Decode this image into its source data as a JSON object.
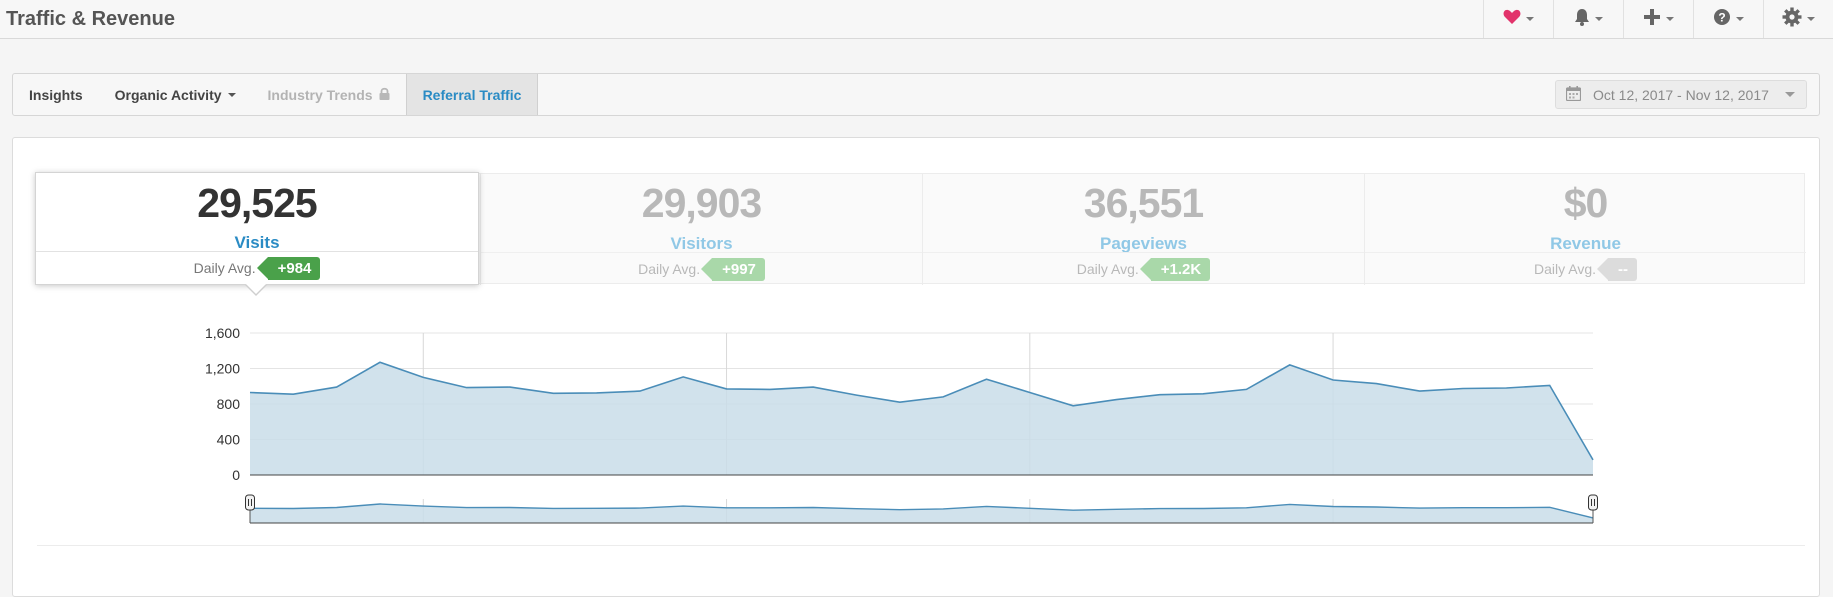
{
  "header": {
    "title": "Traffic & Revenue",
    "icons": [
      "heart-icon",
      "bell-icon",
      "plus-icon",
      "help-icon",
      "gear-icon"
    ]
  },
  "tabs": [
    {
      "label": "Insights",
      "state": "normal"
    },
    {
      "label": "Organic Activity",
      "state": "dropdown"
    },
    {
      "label": "Industry Trends",
      "state": "locked"
    },
    {
      "label": "Referral Traffic",
      "state": "active"
    }
  ],
  "date_range": {
    "label": "Oct 12, 2017 - Nov 12, 2017"
  },
  "metrics": [
    {
      "value": "29,525",
      "label": "Visits",
      "avg_label": "Daily Avg.",
      "avg_badge": "+984",
      "active": true
    },
    {
      "value": "29,903",
      "label": "Visitors",
      "avg_label": "Daily Avg.",
      "avg_badge": "+997",
      "active": false
    },
    {
      "value": "36,551",
      "label": "Pageviews",
      "avg_label": "Daily Avg.",
      "avg_badge": "+1.2K",
      "active": false
    },
    {
      "value": "$0",
      "label": "Revenue",
      "avg_label": "Daily Avg.",
      "avg_badge": "--",
      "active": false
    }
  ],
  "colors": {
    "accent": "#2a8bc4",
    "series_line": "#4a8db8",
    "series_fill": "#c9dde9",
    "badge_positive": "#4aa14a",
    "heart": "#e2336b"
  },
  "chart_data": {
    "type": "area",
    "title": "",
    "xlabel": "",
    "ylabel": "",
    "ylim": [
      0,
      1600
    ],
    "yticks": [
      "1,600",
      "1,200",
      "800",
      "400",
      "0"
    ],
    "ytick_values": [
      1600,
      1200,
      800,
      400,
      0
    ],
    "grid": true,
    "series": [
      {
        "name": "",
        "values": [
          930,
          910,
          990,
          1270,
          1100,
          985,
          990,
          920,
          925,
          945,
          1105,
          970,
          965,
          990,
          900,
          820,
          880,
          1080,
          930,
          780,
          850,
          905,
          915,
          965,
          1240,
          1070,
          1030,
          945,
          975,
          980,
          1010,
          170
        ]
      }
    ],
    "navigator": true
  }
}
